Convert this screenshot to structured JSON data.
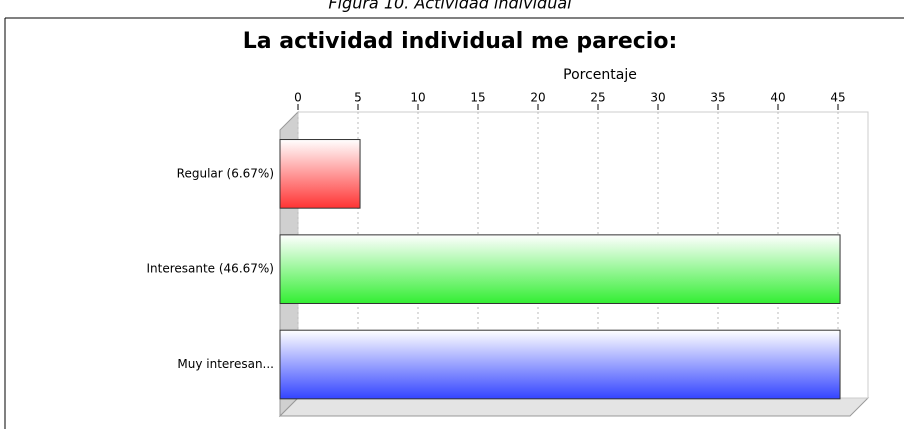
{
  "chart_data": {
    "type": "bar",
    "orientation": "horizontal",
    "caption": "Figura 10. Actividad individual",
    "title": "La actividad individual me parecio:",
    "x_label": "Porcentaje",
    "categories": [
      "Regular (6.67%)",
      "Interesante (46.67%)",
      "Muy interesan..."
    ],
    "values": [
      6.67,
      46.67,
      46.67
    ],
    "colors": [
      "#ff3333",
      "#33ee33",
      "#3344ff"
    ],
    "xlim": [
      0,
      47.5
    ],
    "xticks": [
      0,
      5,
      10,
      15,
      20,
      25,
      30,
      35,
      40,
      45
    ],
    "grid": true
  }
}
